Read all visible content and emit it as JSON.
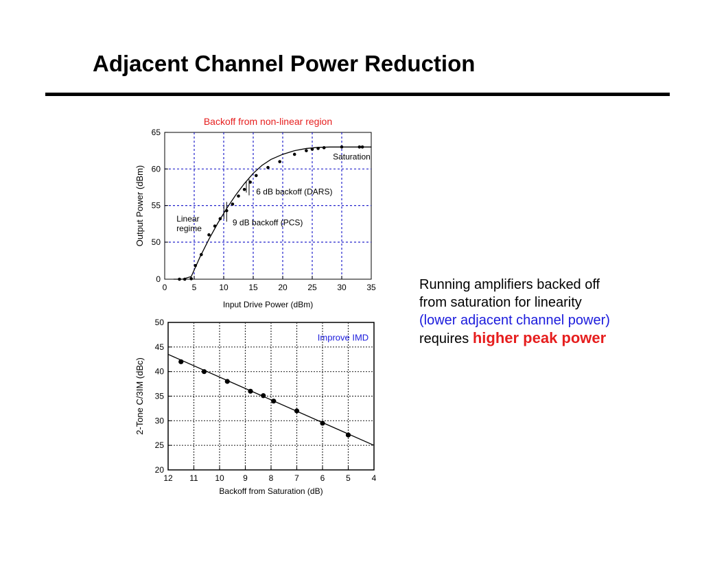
{
  "slide": {
    "title": "Adjacent Channel Power Reduction"
  },
  "caption": {
    "line1": "Running amplifiers backed off",
    "line2": "from saturation for linearity",
    "line3": "(lower adjacent channel power)",
    "line4_prefix": "requires",
    "line4_highlight": "higher peak power",
    "colors": {
      "emphasis": "#1a1adc",
      "highlight": "#e61e1e"
    }
  },
  "chart_data": [
    {
      "type": "scatter",
      "title": "Backoff from non-linear region",
      "title_color": "#e61e1e",
      "xlabel": "Input Drive Power (dBm)",
      "ylabel": "Output Power (dBm)",
      "xlim": [
        0,
        35
      ],
      "ylim": [
        0,
        65
      ],
      "x_ticks": [
        0,
        5,
        10,
        15,
        20,
        25,
        30,
        35
      ],
      "x_tick_labels": [
        "0",
        "5",
        "10",
        "15",
        "20",
        "25",
        "30",
        "35"
      ],
      "y_ticks": [
        0,
        50,
        55,
        60,
        65
      ],
      "y_tick_labels": [
        "0",
        "50",
        "55",
        "60",
        "65"
      ],
      "y_axis_break": "0 to 45 compressed",
      "grid": true,
      "grid_color": "#2222cc",
      "points": [
        [
          2.5,
          41
        ],
        [
          3.4,
          43
        ],
        [
          4.5,
          45
        ],
        [
          5.2,
          46.8
        ],
        [
          6.2,
          48.3
        ],
        [
          7.5,
          51
        ],
        [
          8.5,
          52.2
        ],
        [
          9.4,
          53.2
        ],
        [
          10.5,
          54.3
        ],
        [
          11.5,
          55.2
        ],
        [
          12.5,
          56.3
        ],
        [
          13.5,
          57.2
        ],
        [
          14.5,
          58.2
        ],
        [
          15.5,
          59.1
        ],
        [
          17.5,
          60.2
        ],
        [
          19.5,
          61
        ],
        [
          22,
          62
        ],
        [
          24,
          62.5
        ],
        [
          25,
          62.7
        ],
        [
          26,
          62.8
        ],
        [
          27,
          62.9
        ],
        [
          30,
          63
        ],
        [
          33,
          63
        ],
        [
          33.5,
          63
        ]
      ],
      "fit_curve": [
        [
          1.5,
          38.9
        ],
        [
          3,
          42.4
        ],
        [
          4.5,
          45.3
        ],
        [
          6,
          48
        ],
        [
          7.5,
          50.4
        ],
        [
          9,
          52.6
        ],
        [
          10.5,
          54.6
        ],
        [
          12,
          56.4
        ],
        [
          13.5,
          58
        ],
        [
          15,
          59.4
        ],
        [
          16.5,
          60.5
        ],
        [
          18,
          61.3
        ],
        [
          20,
          62
        ],
        [
          22,
          62.5
        ],
        [
          24,
          62.8
        ],
        [
          26,
          62.95
        ],
        [
          28,
          63
        ],
        [
          35,
          63
        ]
      ],
      "annotations": [
        {
          "text": "Saturation",
          "x": 28.5,
          "y": 61.3
        },
        {
          "text": "6 dB backoff (DARS)",
          "x": 15.5,
          "y": 56.5
        },
        {
          "text": "9 dB backoff (PCS)",
          "x": 11.5,
          "y": 52.3
        },
        {
          "text": "Linear",
          "x": 2.0,
          "y": 52.8
        },
        {
          "text": "regime",
          "x": 2.0,
          "y": 51.5
        }
      ],
      "markers": [
        {
          "name": "6dB",
          "x": 14.3,
          "y_range": [
            56.4,
            58.6
          ]
        },
        {
          "name": "9dB",
          "x": 10.5,
          "y_range": [
            52.8,
            55.5
          ]
        }
      ]
    },
    {
      "type": "scatter",
      "title": "",
      "xlabel": "Backoff from Saturation (dB)",
      "ylabel": "2-Tone C/3IM (dBc)",
      "xlim": [
        12,
        4
      ],
      "ylim": [
        20,
        50
      ],
      "x_ticks": [
        12,
        11,
        10,
        9,
        8,
        7,
        6,
        5,
        4
      ],
      "x_tick_labels": [
        "12",
        "11",
        "10",
        "9",
        "8",
        "7",
        "6",
        "5",
        "4"
      ],
      "y_ticks": [
        20,
        25,
        30,
        35,
        40,
        45,
        50
      ],
      "y_tick_labels": [
        "20",
        "25",
        "30",
        "35",
        "40",
        "45",
        "50"
      ],
      "grid": true,
      "grid_color": "#333333",
      "points": [
        [
          11.5,
          42
        ],
        [
          10.6,
          40
        ],
        [
          9.7,
          38
        ],
        [
          8.8,
          36
        ],
        [
          8.3,
          35.1
        ],
        [
          7.9,
          34
        ],
        [
          7.0,
          32
        ],
        [
          6.0,
          29.5
        ],
        [
          5.0,
          27.1
        ]
      ],
      "fit_line": [
        [
          12,
          43.5
        ],
        [
          4,
          25
        ]
      ],
      "annotations": [
        {
          "text": "Improve IMD",
          "x": 5.2,
          "y": 46.3,
          "color": "#1a1adc"
        }
      ]
    }
  ]
}
